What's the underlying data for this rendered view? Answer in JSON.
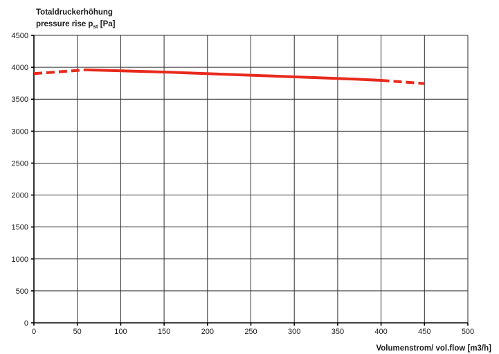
{
  "chart_data": {
    "type": "line",
    "ylabel_line1": "Totaldruckerhöhung",
    "ylabel_line2_main": "pressure rise  p",
    "ylabel_line2_sub": "st",
    "ylabel_line2_unit": " [Pa]",
    "xlabel": "Volumenstrom/ vol.flow  [m3/h]",
    "xlim": [
      0,
      500
    ],
    "ylim": [
      0,
      4500
    ],
    "x_ticks": [
      0,
      50,
      100,
      150,
      200,
      250,
      300,
      350,
      400,
      450,
      500
    ],
    "y_ticks": [
      0,
      500,
      1000,
      1500,
      2000,
      2500,
      3000,
      3500,
      4000,
      4500
    ],
    "grid": true,
    "line_color": "#e8291c",
    "series": [
      {
        "segments": [
          {
            "style": "dashed",
            "x": [
              0,
              60
            ],
            "y": [
              3900,
              3960
            ]
          },
          {
            "style": "solid",
            "x": [
              60,
              150,
              250,
              360,
              400
            ],
            "y": [
              3960,
              3925,
              3875,
              3820,
              3795
            ]
          },
          {
            "style": "dashed",
            "x": [
              400,
              450
            ],
            "y": [
              3795,
              3745
            ]
          }
        ]
      }
    ]
  }
}
